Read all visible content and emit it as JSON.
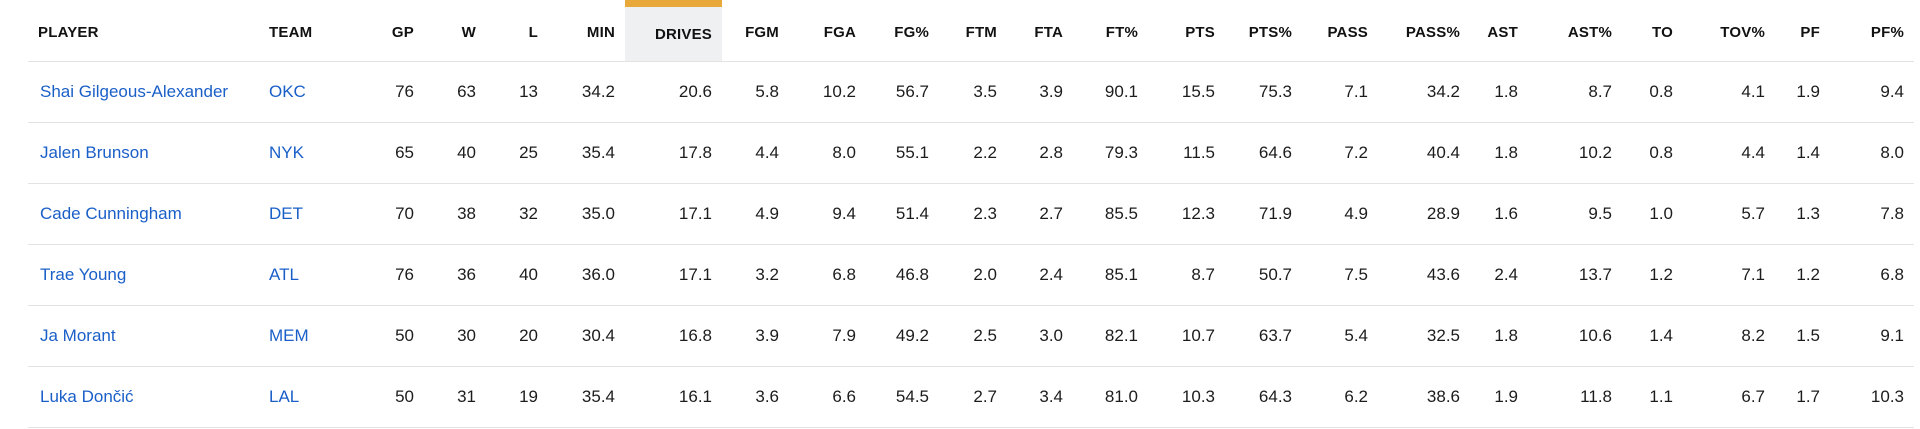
{
  "columns": [
    "PLAYER",
    "TEAM",
    "GP",
    "W",
    "L",
    "MIN",
    "DRIVES",
    "FGM",
    "FGA",
    "FG%",
    "FTM",
    "FTA",
    "FT%",
    "PTS",
    "PTS%",
    "PASS",
    "PASS%",
    "AST",
    "AST%",
    "TO",
    "TOV%",
    "PF",
    "PF%"
  ],
  "sorted_column": "DRIVES",
  "colors": {
    "link": "#1a5fc8",
    "sort_indicator": "#e8a83a",
    "sorted_bg": "#eef0f1"
  },
  "rows": [
    {
      "player": "Shai Gilgeous-Alexander",
      "team": "OKC",
      "stats": [
        "76",
        "63",
        "13",
        "34.2",
        "20.6",
        "5.8",
        "10.2",
        "56.7",
        "3.5",
        "3.9",
        "90.1",
        "15.5",
        "75.3",
        "7.1",
        "34.2",
        "1.8",
        "8.7",
        "0.8",
        "4.1",
        "1.9",
        "9.4"
      ]
    },
    {
      "player": "Jalen Brunson",
      "team": "NYK",
      "stats": [
        "65",
        "40",
        "25",
        "35.4",
        "17.8",
        "4.4",
        "8.0",
        "55.1",
        "2.2",
        "2.8",
        "79.3",
        "11.5",
        "64.6",
        "7.2",
        "40.4",
        "1.8",
        "10.2",
        "0.8",
        "4.4",
        "1.4",
        "8.0"
      ]
    },
    {
      "player": "Cade Cunningham",
      "team": "DET",
      "stats": [
        "70",
        "38",
        "32",
        "35.0",
        "17.1",
        "4.9",
        "9.4",
        "51.4",
        "2.3",
        "2.7",
        "85.5",
        "12.3",
        "71.9",
        "4.9",
        "28.9",
        "1.6",
        "9.5",
        "1.0",
        "5.7",
        "1.3",
        "7.8"
      ]
    },
    {
      "player": "Trae Young",
      "team": "ATL",
      "stats": [
        "76",
        "36",
        "40",
        "36.0",
        "17.1",
        "3.2",
        "6.8",
        "46.8",
        "2.0",
        "2.4",
        "85.1",
        "8.7",
        "50.7",
        "7.5",
        "43.6",
        "2.4",
        "13.7",
        "1.2",
        "7.1",
        "1.2",
        "6.8"
      ]
    },
    {
      "player": "Ja Morant",
      "team": "MEM",
      "stats": [
        "50",
        "30",
        "20",
        "30.4",
        "16.8",
        "3.9",
        "7.9",
        "49.2",
        "2.5",
        "3.0",
        "82.1",
        "10.7",
        "63.7",
        "5.4",
        "32.5",
        "1.8",
        "10.6",
        "1.4",
        "8.2",
        "1.5",
        "9.1"
      ]
    },
    {
      "player": "Luka Dončić",
      "team": "LAL",
      "stats": [
        "50",
        "31",
        "19",
        "35.4",
        "16.1",
        "3.6",
        "6.6",
        "54.5",
        "2.7",
        "3.4",
        "81.0",
        "10.3",
        "64.3",
        "6.2",
        "38.6",
        "1.9",
        "11.8",
        "1.1",
        "6.7",
        "1.7",
        "10.3"
      ]
    }
  ]
}
